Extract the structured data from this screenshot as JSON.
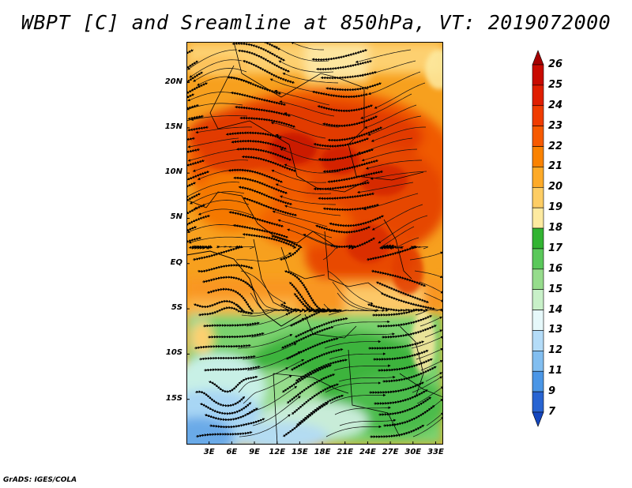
{
  "title": "WBPT [C] and Sreamline at 850hPa, VT: 2019072000",
  "credit": "GrADS: IGES/COLA",
  "map": {
    "lat_labels": [
      "20N",
      "15N",
      "10N",
      "5N",
      "EQ",
      "5S",
      "10S",
      "15S"
    ],
    "lon_labels": [
      "3E",
      "6E",
      "9E",
      "12E",
      "15E",
      "18E",
      "21E",
      "24E",
      "27E",
      "30E",
      "33E"
    ],
    "lat_range": [
      -20,
      24.5
    ],
    "lon_range": [
      0,
      34
    ]
  },
  "colorbar": {
    "labels": [
      "26",
      "25",
      "24",
      "23",
      "22",
      "21",
      "20",
      "19",
      "18",
      "17",
      "16",
      "15",
      "14",
      "13",
      "12",
      "11",
      "9",
      "7"
    ],
    "colors": [
      "#a50000",
      "#c80a00",
      "#e01e00",
      "#f03c00",
      "#f75a00",
      "#fa8200",
      "#fdaa28",
      "#fdcd64",
      "#fdeaa0",
      "#32b432",
      "#5ac85a",
      "#96dc8c",
      "#c8f0c8",
      "#e6f8fa",
      "#b4dcf8",
      "#82bef0",
      "#4b96e6",
      "#2864d2",
      "#1446be"
    ]
  }
}
